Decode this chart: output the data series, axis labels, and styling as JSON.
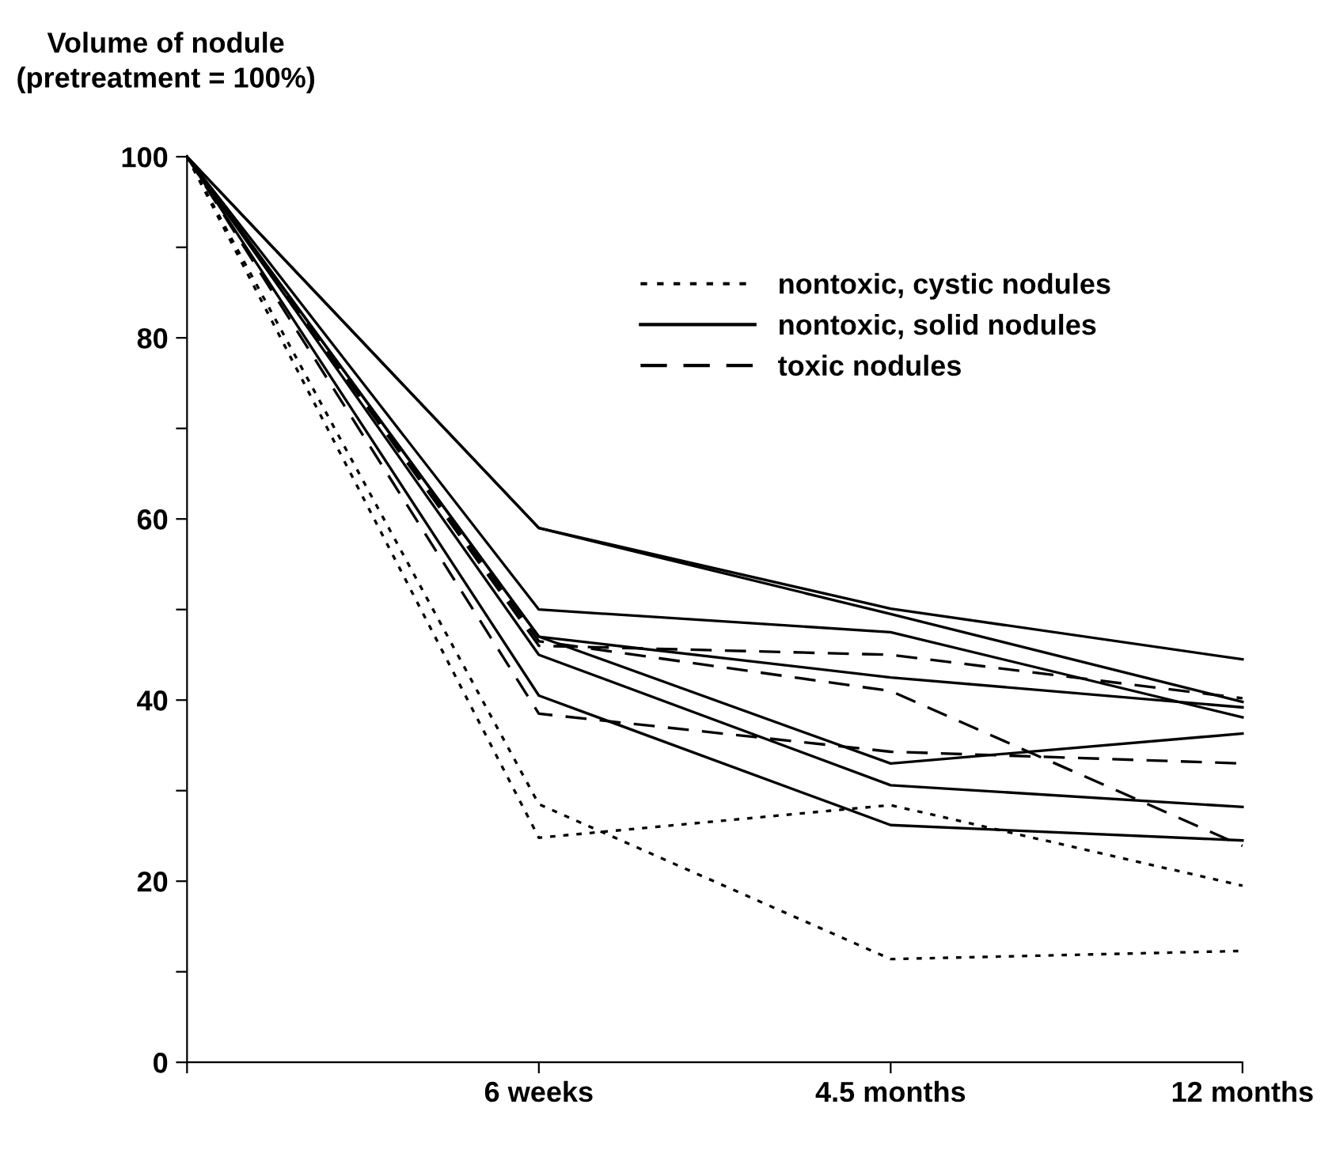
{
  "chart_data": {
    "type": "line",
    "ylabel": "Volume of nodule\n(pretreatment = 100%)",
    "categories": [
      null,
      "6 weeks",
      "4.5 months",
      "12 months"
    ],
    "ylim": [
      0,
      100
    ],
    "yticks": [
      0,
      {
        "value": 10,
        "label": null
      },
      20,
      {
        "value": 30,
        "label": null
      },
      40,
      {
        "value": 50,
        "label": null
      },
      60,
      {
        "value": 70,
        "label": null
      },
      80,
      {
        "value": 90,
        "label": null
      },
      100
    ],
    "grid": false,
    "legend": "top right",
    "marker": "none",
    "series": [
      {
        "name": "nontoxic, cystic nodules",
        "color": "#000000",
        "line_style": "dotted",
        "values": [
          100,
          24.8,
          28.4,
          19.5
        ]
      },
      {
        "color": "#000000",
        "line_style": "dotted",
        "values": [
          100,
          28.5,
          11.4,
          12.3
        ]
      },
      {
        "name": "nontoxic, solid nodules",
        "color": "#000000",
        "line_style": "solid",
        "values": [
          100,
          59,
          50.1,
          44.5
        ]
      },
      {
        "color": "#000000",
        "line_style": "solid",
        "values": [
          100,
          59,
          49.5,
          39.8
        ]
      },
      {
        "color": "#000000",
        "line_style": "solid",
        "values": [
          100,
          50,
          47.5,
          38.1
        ]
      },
      {
        "color": "#000000",
        "line_style": "solid",
        "values": [
          100,
          47,
          42.5,
          39.2
        ]
      },
      {
        "color": "#000000",
        "line_style": "solid",
        "values": [
          100,
          47,
          33,
          36.3
        ]
      },
      {
        "color": "#000000",
        "line_style": "solid",
        "values": [
          100,
          45,
          30.6,
          28.2
        ]
      },
      {
        "color": "#000000",
        "line_style": "solid",
        "values": [
          100,
          40.5,
          26.2,
          24.5
        ]
      },
      {
        "name": "toxic nodules",
        "color": "#000000",
        "line_style": "dashed",
        "values": [
          100,
          46,
          45,
          40.2
        ]
      },
      {
        "color": "#000000",
        "line_style": "dashed",
        "values": [
          100,
          46.5,
          41,
          23.9
        ]
      },
      {
        "color": "#000000",
        "line_style": "dashed",
        "values": [
          100,
          38.5,
          34.3,
          33
        ]
      }
    ]
  }
}
